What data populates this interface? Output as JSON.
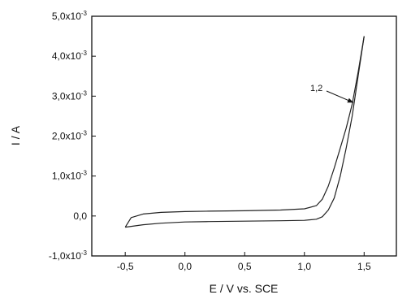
{
  "chart_data": {
    "type": "line",
    "xlabel": "E / V vs. SCE",
    "ylabel": "I / A",
    "xlim": [
      -0.78,
      1.77
    ],
    "ylim": [
      -0.001,
      0.005
    ],
    "grid": false,
    "x_ticks": [
      -0.5,
      0.0,
      0.5,
      1.0,
      1.5
    ],
    "x_tick_labels": [
      "-0,5",
      "0,0",
      "0,5",
      "1,0",
      "1,5"
    ],
    "y_ticks": [
      -0.001,
      0.0,
      0.001,
      0.002,
      0.003,
      0.004,
      0.005
    ],
    "y_tick_labels": [
      {
        "mantissa": "-1,0x10",
        "exp": "-3"
      },
      {
        "mantissa": "0,0",
        "exp": ""
      },
      {
        "mantissa": "1,0x10",
        "exp": "-3"
      },
      {
        "mantissa": "2,0x10",
        "exp": "-3"
      },
      {
        "mantissa": "3,0x10",
        "exp": "-3"
      },
      {
        "mantissa": "4,0x10",
        "exp": "-3"
      },
      {
        "mantissa": "5,0x10",
        "exp": "-3"
      }
    ],
    "annotation": {
      "text": "1,2",
      "arrow_to": {
        "x": 1.41,
        "y": 0.00284
      }
    },
    "series": [
      {
        "x": [
          -0.5,
          -0.45,
          -0.35,
          -0.2,
          0.0,
          0.2,
          0.5,
          0.8,
          1.0,
          1.1,
          1.15,
          1.2,
          1.25,
          1.3,
          1.35,
          1.4,
          1.45,
          1.5
        ],
        "y": [
          -0.00028,
          -4e-05,
          5e-05,
          9e-05,
          0.00011,
          0.00012,
          0.00013,
          0.00015,
          0.00018,
          0.00026,
          0.00042,
          0.00075,
          0.0012,
          0.0017,
          0.0022,
          0.0028,
          0.0036,
          0.0045
        ]
      },
      {
        "x": [
          1.5,
          1.45,
          1.4,
          1.35,
          1.3,
          1.25,
          1.2,
          1.15,
          1.1,
          1.0,
          0.8,
          0.5,
          0.2,
          0.0,
          -0.2,
          -0.35,
          -0.45,
          -0.5
        ],
        "y": [
          0.0045,
          0.0035,
          0.0025,
          0.0017,
          0.001,
          0.00045,
          0.00015,
          -2e-05,
          -8e-05,
          -0.00011,
          -0.00012,
          -0.00013,
          -0.00014,
          -0.00015,
          -0.00018,
          -0.00022,
          -0.00026,
          -0.00028
        ]
      }
    ]
  }
}
